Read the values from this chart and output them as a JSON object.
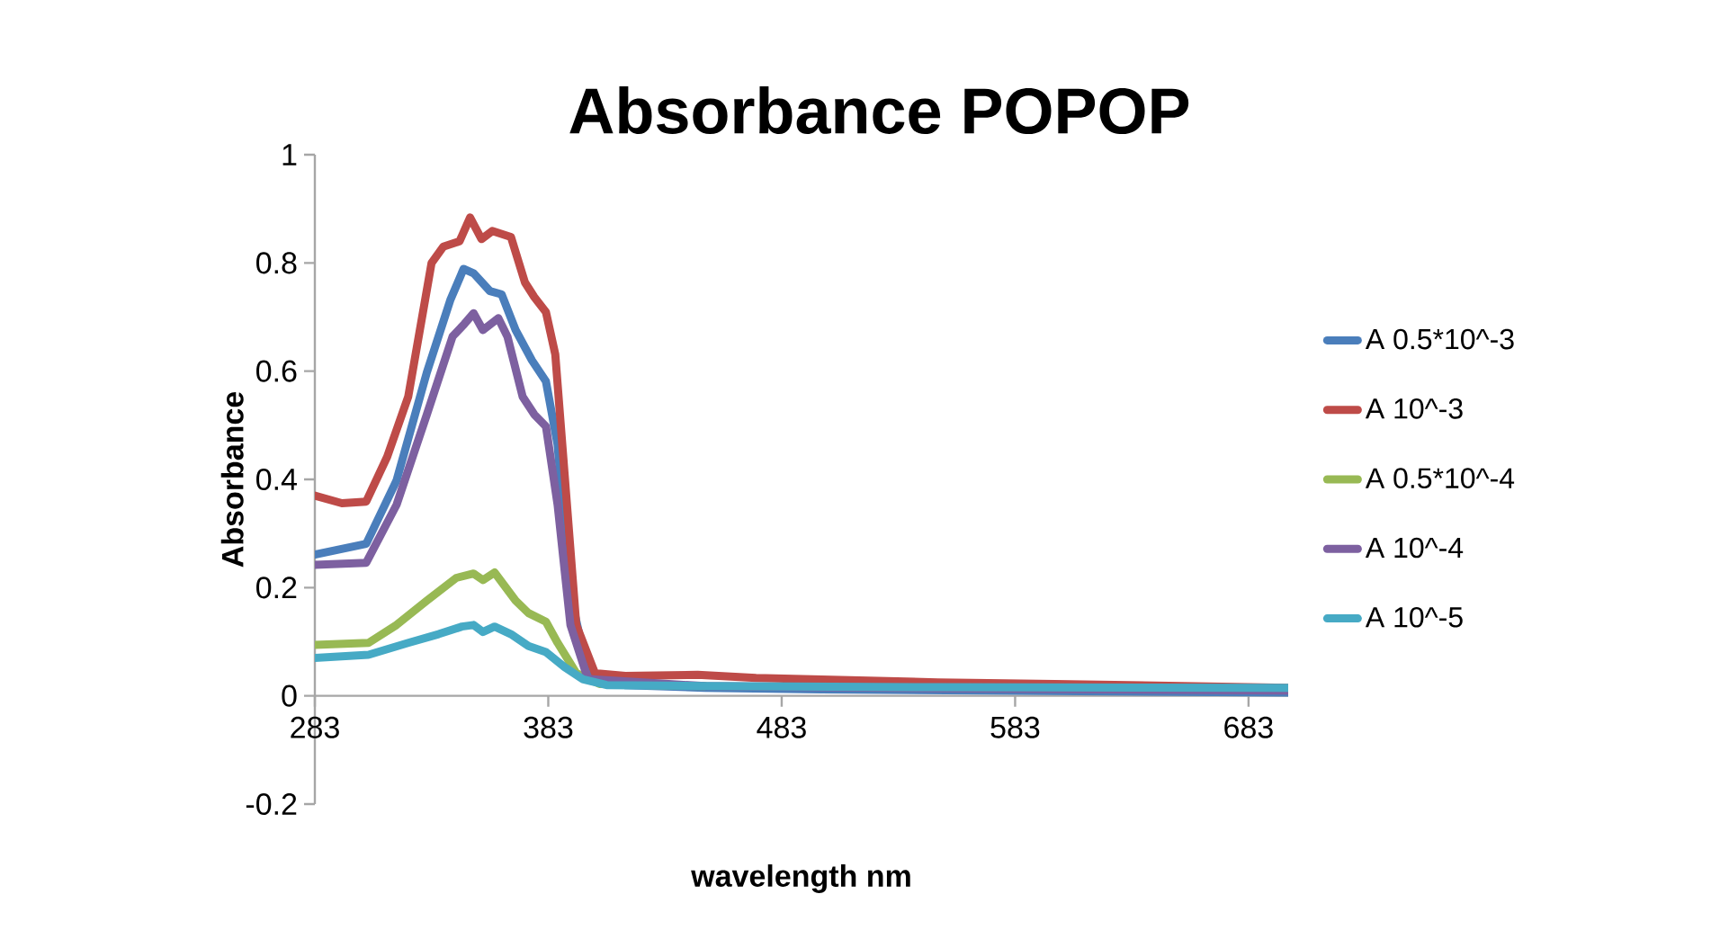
{
  "chart_data": {
    "type": "line",
    "title": "Absorbance  POPOP",
    "xlabel": "wavelength  nm",
    "ylabel": "Absorbance",
    "xlim": [
      283,
      700
    ],
    "xticks": [
      283,
      383,
      483,
      583,
      683
    ],
    "ylim": [
      -0.2,
      1
    ],
    "yticks": [
      -0.2,
      0,
      0.2,
      0.4,
      0.6,
      0.8,
      1
    ],
    "legend": "right",
    "grid": false,
    "series": [
      {
        "name": "A 0.5*10^-3",
        "color": "#4a7ebb",
        "x": [
          283,
          305,
          318,
          331,
          341,
          346.7,
          351,
          358,
          363,
          369,
          376,
          382,
          387,
          392.5,
          400,
          416,
          450,
          500,
          600,
          700
        ],
        "values": [
          0.261,
          0.281,
          0.398,
          0.598,
          0.731,
          0.789,
          0.781,
          0.748,
          0.742,
          0.676,
          0.62,
          0.581,
          0.464,
          0.187,
          0.042,
          0.02,
          0.015,
          0.012,
          0.009,
          0.006
        ]
      },
      {
        "name": "A 10^-3",
        "color": "#be4b48",
        "x": [
          283,
          294.6,
          305,
          314,
          323,
          333,
          338,
          345,
          349.5,
          354.4,
          359,
          367,
          373,
          377,
          382,
          386,
          390,
          395,
          403,
          416,
          447,
          472,
          550,
          600,
          700
        ],
        "values": [
          0.37,
          0.356,
          0.359,
          0.442,
          0.553,
          0.8,
          0.83,
          0.84,
          0.884,
          0.844,
          0.859,
          0.848,
          0.764,
          0.737,
          0.709,
          0.631,
          0.409,
          0.131,
          0.042,
          0.037,
          0.039,
          0.033,
          0.025,
          0.022,
          0.015
        ]
      },
      {
        "name": "A 0.5*10^-4",
        "color": "#98b954",
        "x": [
          283,
          306,
          318,
          331,
          343.6,
          351,
          355,
          360,
          369,
          374.5,
          382,
          387,
          395,
          405,
          450
        ],
        "values": [
          0.094,
          0.098,
          0.131,
          0.176,
          0.218,
          0.226,
          0.214,
          0.228,
          0.176,
          0.153,
          0.137,
          0.098,
          0.042,
          0.022,
          0.018
        ]
      },
      {
        "name": "A 10^-4",
        "color": "#7d60a0",
        "x": [
          283,
          305,
          318,
          331,
          342,
          347,
          351,
          355,
          361.6,
          365.5,
          372,
          377,
          382,
          387,
          392.5,
          400,
          450,
          550,
          700
        ],
        "values": [
          0.242,
          0.246,
          0.353,
          0.52,
          0.664,
          0.687,
          0.707,
          0.676,
          0.698,
          0.664,
          0.553,
          0.52,
          0.498,
          0.353,
          0.131,
          0.031,
          0.018,
          0.014,
          0.01
        ]
      },
      {
        "name": "A 10^-5",
        "color": "#46aac5",
        "x": [
          283,
          306,
          323,
          336,
          346,
          351,
          355,
          360,
          367,
          374.5,
          382,
          390,
          397.7,
          408,
          450,
          550,
          700
        ],
        "values": [
          0.07,
          0.076,
          0.098,
          0.114,
          0.128,
          0.131,
          0.118,
          0.128,
          0.114,
          0.092,
          0.081,
          0.053,
          0.031,
          0.02,
          0.018,
          0.016,
          0.015
        ]
      }
    ]
  }
}
